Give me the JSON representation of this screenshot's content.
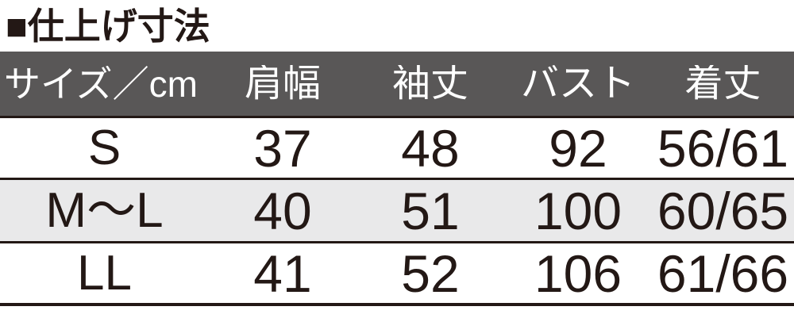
{
  "title": "■仕上げ寸法",
  "colors": {
    "title_text": "#231815",
    "header_bg": "#595757",
    "header_text": "#ffffff",
    "row_bg": "#ffffff",
    "row_alt_bg": "#e9e9ea",
    "grid_line": "#231815",
    "cell_text": "#231815"
  },
  "chart_data": {
    "type": "table",
    "title": "仕上げ寸法",
    "columns": [
      "サイズ／cm",
      "肩幅",
      "袖丈",
      "バスト",
      "着丈"
    ],
    "rows": [
      {
        "cells": [
          "S",
          "37",
          "48",
          "92",
          "56/61"
        ]
      },
      {
        "cells": [
          "M～L",
          "40",
          "51",
          "100",
          "60/65"
        ]
      },
      {
        "cells": [
          "LL",
          "41",
          "52",
          "106",
          "61/66"
        ]
      }
    ]
  }
}
